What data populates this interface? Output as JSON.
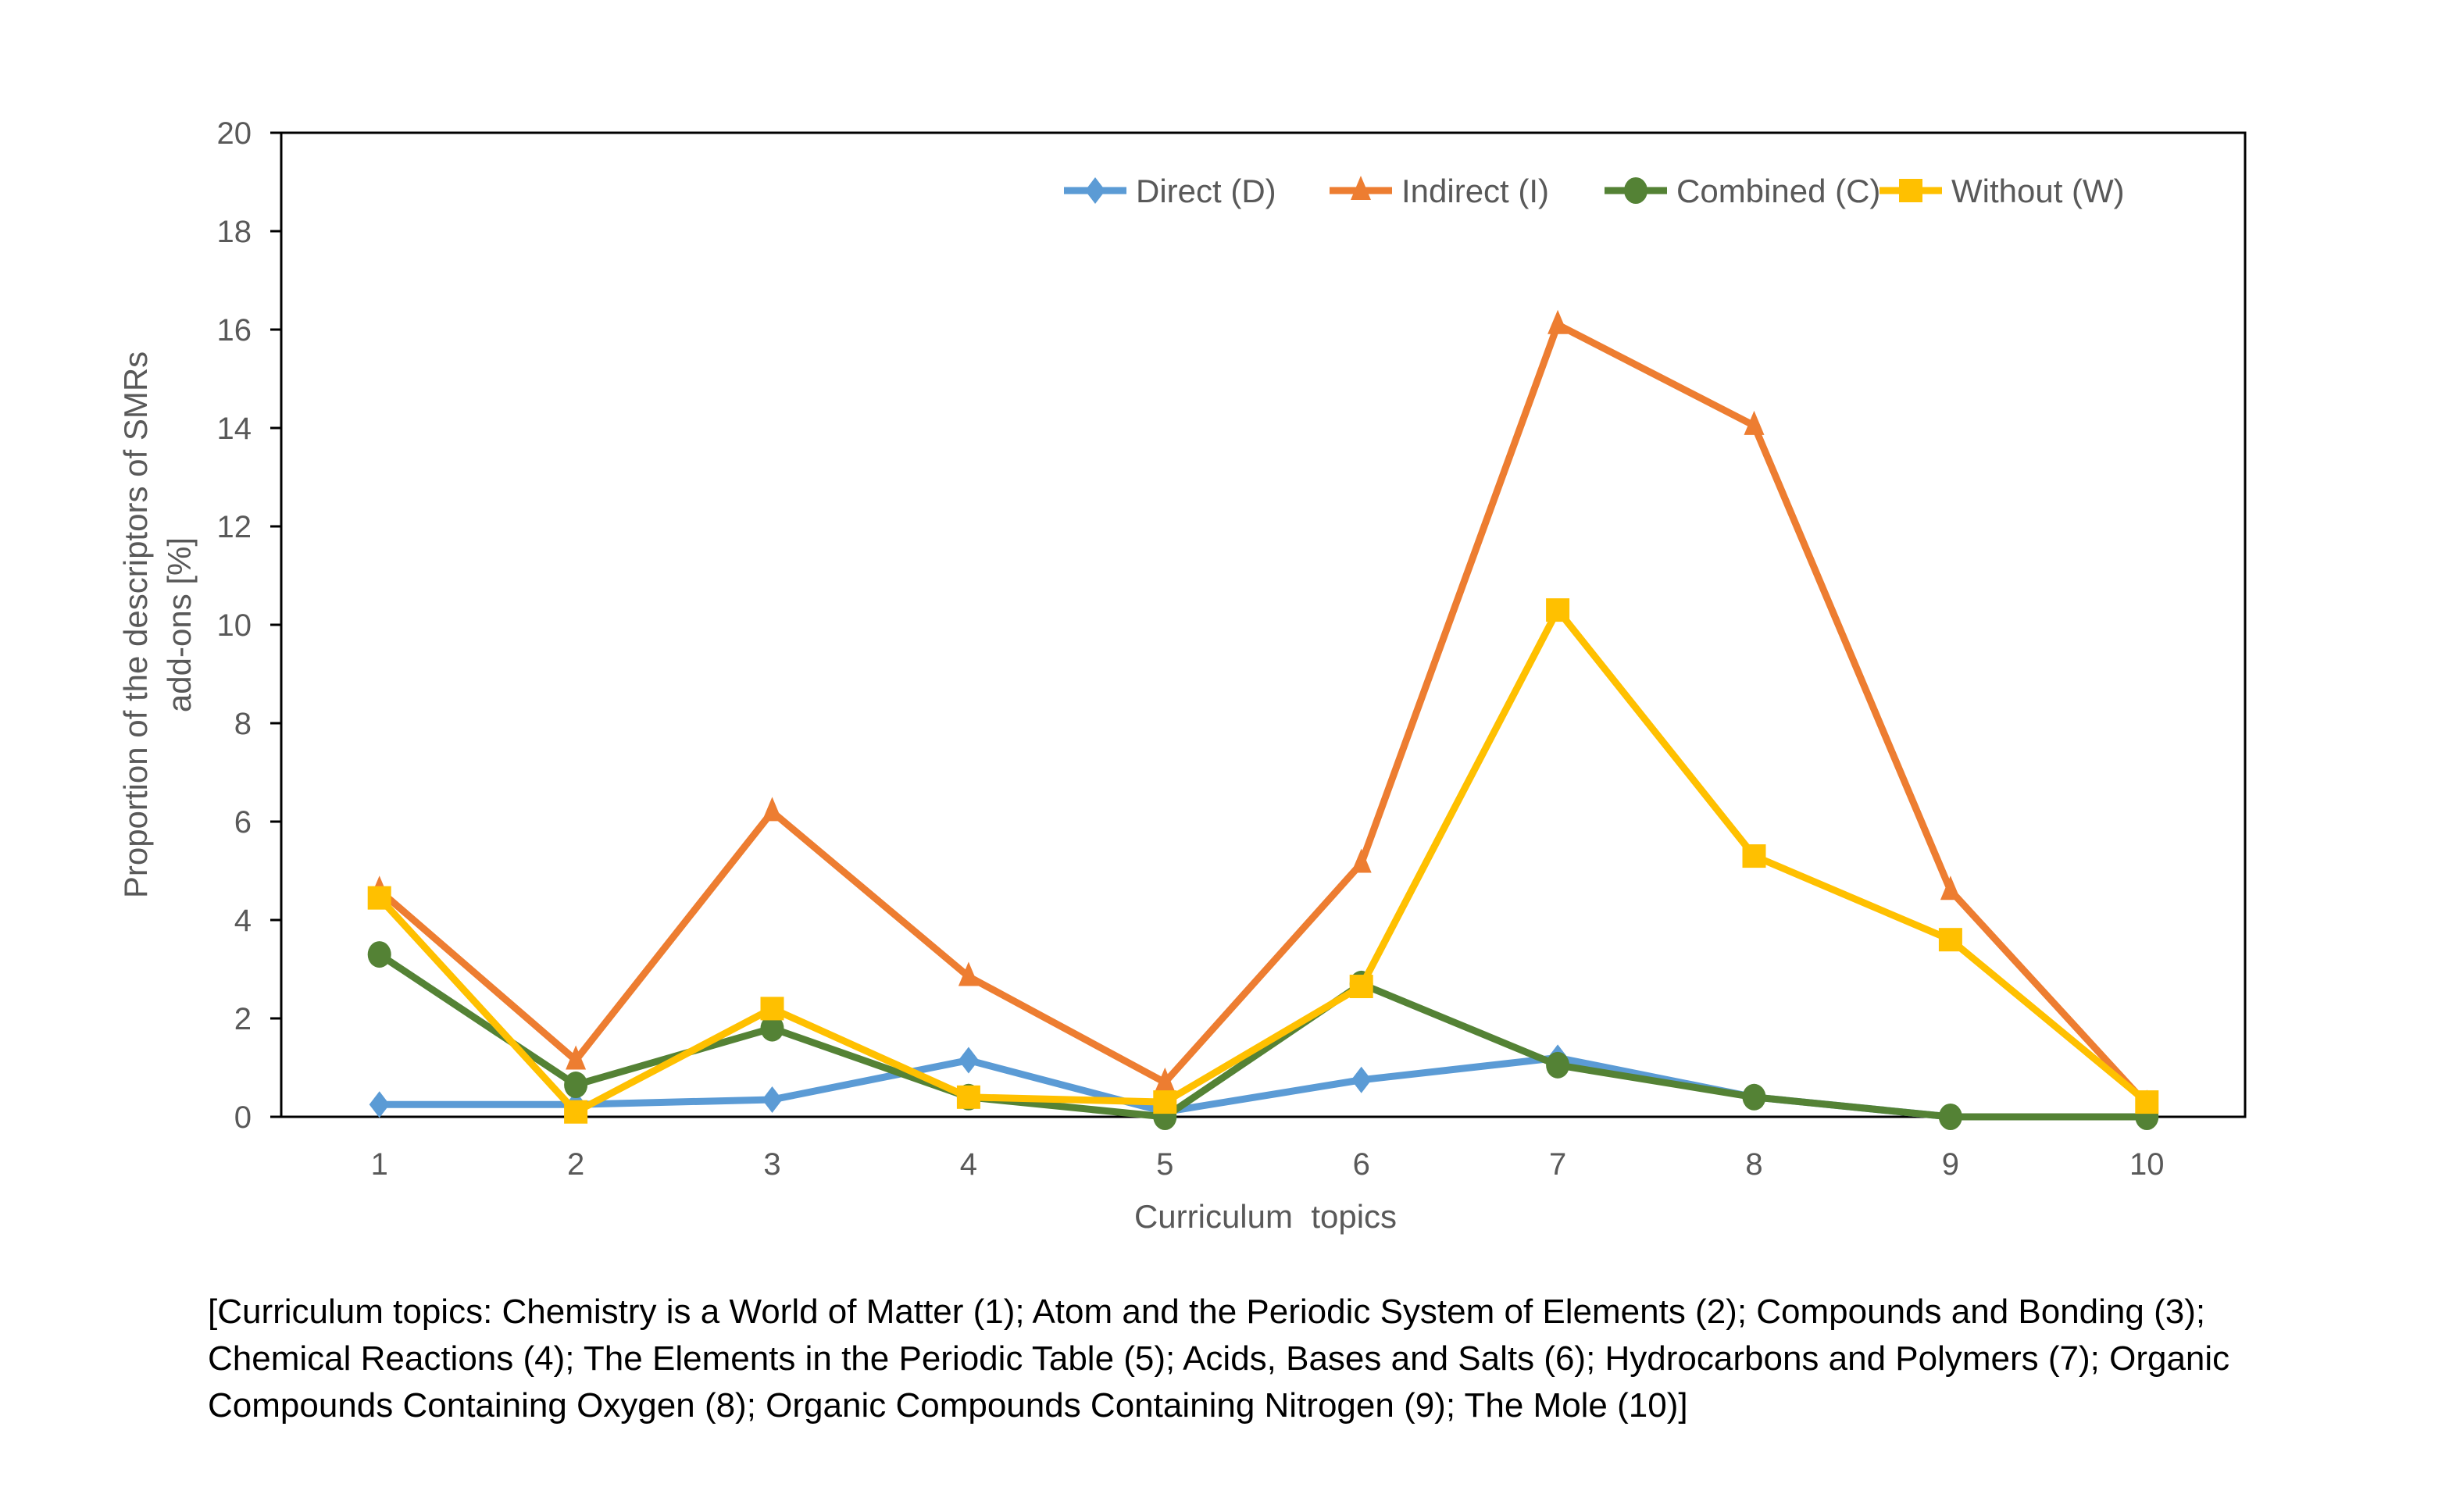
{
  "chart_data": {
    "type": "line",
    "title": "",
    "xlabel": "Curriculum  topics",
    "ylabel": [
      "Proportion of the descriptors of SMRs",
      "add-ons [%]"
    ],
    "categories": [
      "1",
      "2",
      "3",
      "4",
      "5",
      "6",
      "7",
      "8",
      "9",
      "10"
    ],
    "ylim": [
      0,
      20
    ],
    "yticks": [
      "0",
      "2",
      "4",
      "6",
      "8",
      "10",
      "12",
      "14",
      "16",
      "18",
      "20"
    ],
    "grid": false,
    "legend_position": "top-right",
    "series": [
      {
        "name": "Direct (D)",
        "color": "#5B9BD5",
        "marker": "diamond",
        "values": [
          0.25,
          0.25,
          0.35,
          1.15,
          0.1,
          0.75,
          1.2,
          0.4,
          0,
          0
        ]
      },
      {
        "name": "Indirect (I)",
        "color": "#ED7D31",
        "marker": "triangle",
        "values": [
          4.6,
          1.15,
          6.2,
          2.85,
          0.7,
          5.15,
          16.1,
          14.05,
          4.6,
          0.25
        ]
      },
      {
        "name": "Combined (C)",
        "color": "#548235",
        "marker": "circle",
        "values": [
          3.3,
          0.65,
          1.8,
          0.4,
          0,
          2.7,
          1.05,
          0.4,
          0,
          0
        ]
      },
      {
        "name": "Without (W)",
        "color": "#FFC000",
        "marker": "square",
        "values": [
          4.45,
          0.1,
          2.2,
          0.4,
          0.3,
          2.65,
          10.3,
          5.3,
          3.6,
          0.3
        ]
      }
    ]
  },
  "caption": [
    "[Curriculum topics: Chemistry is a World of Matter (1); Atom and the Periodic System of Elements (2); Compounds and Bonding (3);",
    "Chemical Reactions (4); The Elements in the Periodic Table (5); Acids, Bases and Salts (6); Hydrocarbons and Polymers (7); Organic",
    "Compounds Containing Oxygen (8); Organic Compounds Containing Nitrogen (9); The Mole (10)]"
  ]
}
